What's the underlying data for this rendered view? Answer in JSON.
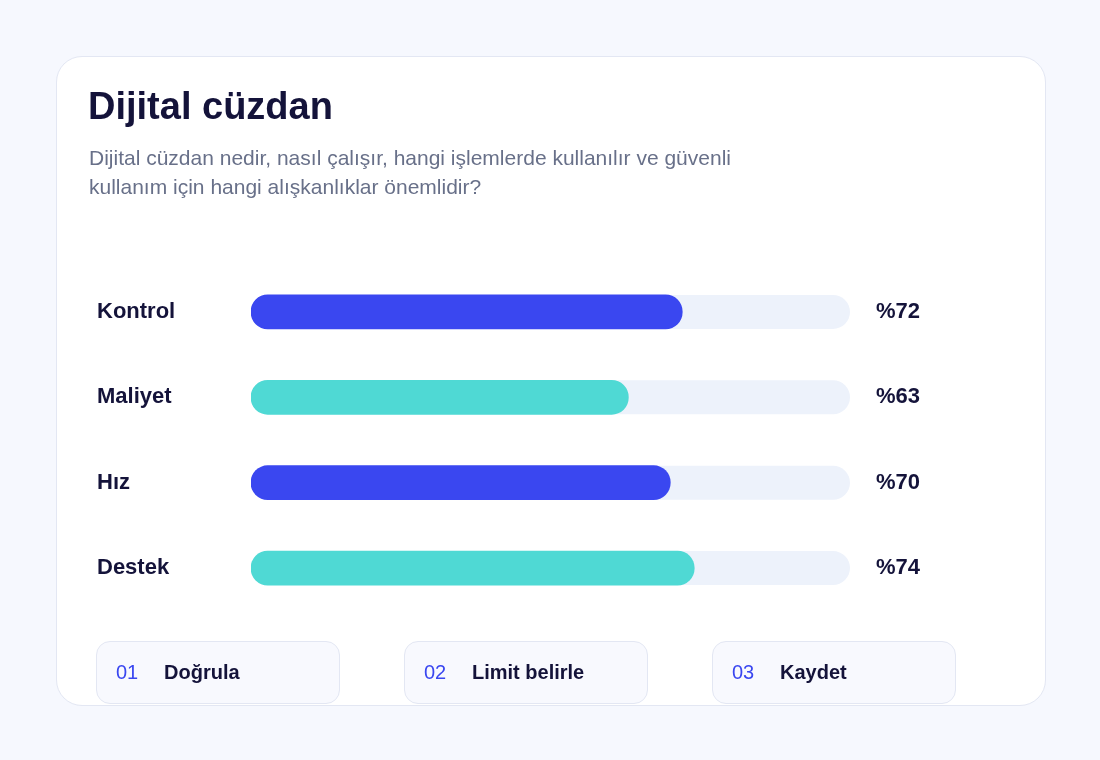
{
  "chart_data": {
    "type": "bar",
    "orientation": "horizontal",
    "title": "Dijital cüzdan",
    "subtitle": "Dijital cüzdan nedir, nasıl çalışır, hangi işlemlerde kullanılır ve güvenli kullanım için hangi alışkanlıklar önemlidir?",
    "categories": [
      "Kontrol",
      "Maliyet",
      "Hız",
      "Destek"
    ],
    "values": [
      72,
      63,
      70,
      74
    ],
    "colors": [
      "#3a47f0",
      "#4fd9d4",
      "#3a47f0",
      "#4fd9d4"
    ],
    "value_labels": [
      "%72",
      "%63",
      "%70",
      "%74"
    ],
    "xlim": [
      0,
      100
    ],
    "tick_labels": "y",
    "legend": false,
    "annotations": [
      "01",
      "Doğrula",
      "02",
      "Limit belirle",
      "03",
      "Kaydet"
    ]
  }
}
